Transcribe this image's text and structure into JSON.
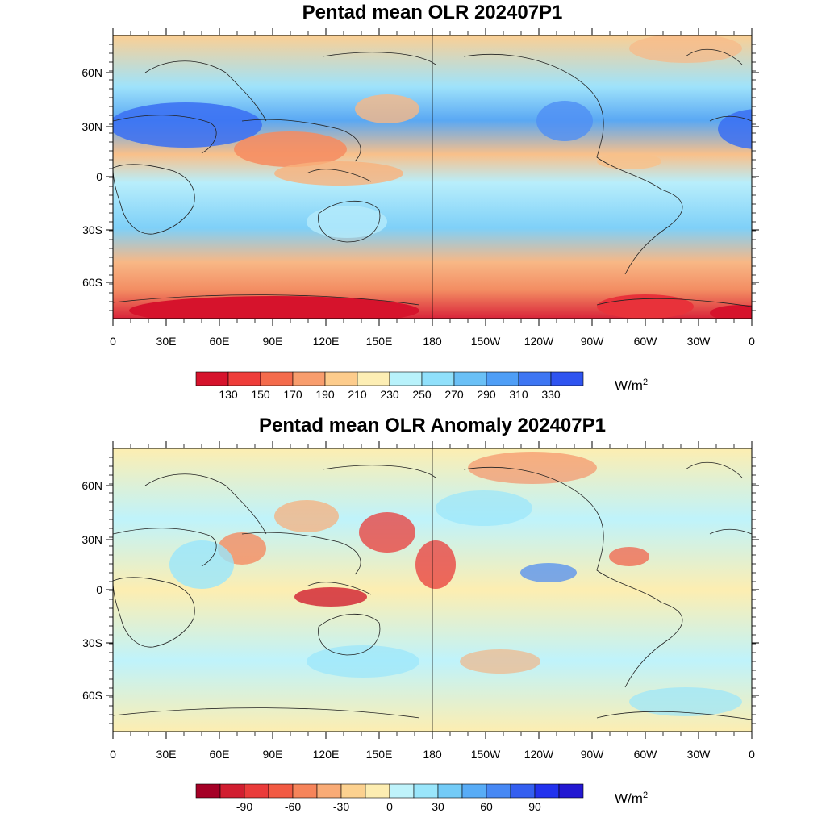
{
  "maps": [
    {
      "id": "olr",
      "title": "Pentad mean OLR 202407P1",
      "lat_ticks": [
        "60N",
        "30N",
        "0",
        "30S",
        "60S"
      ],
      "lon_ticks": [
        "0",
        "30E",
        "60E",
        "90E",
        "120E",
        "150E",
        "180",
        "150W",
        "120W",
        "90W",
        "60W",
        "30W",
        "0"
      ],
      "colorbar": {
        "colors": [
          "#d6132c",
          "#ef3d3a",
          "#f46b4c",
          "#f89d6d",
          "#fdcc8c",
          "#fdeeb4",
          "#b8f2fb",
          "#90e0fb",
          "#6ac0f6",
          "#4f9ef6",
          "#3e76f3",
          "#2f54f0"
        ],
        "labels": [
          "130",
          "150",
          "170",
          "190",
          "210",
          "230",
          "250",
          "270",
          "290",
          "310",
          "330"
        ],
        "unit": "W/m",
        "unit_sup": "2"
      }
    },
    {
      "id": "anomaly",
      "title": "Pentad mean OLR Anomaly 202407P1",
      "lat_ticks": [
        "60N",
        "30N",
        "0",
        "30S",
        "60S"
      ],
      "lon_ticks": [
        "0",
        "30E",
        "60E",
        "90E",
        "120E",
        "150E",
        "180",
        "150W",
        "120W",
        "90W",
        "60W",
        "30W",
        "0"
      ],
      "colorbar": {
        "colors": [
          "#a50026",
          "#d11e30",
          "#ea3b3a",
          "#f25a43",
          "#f6845a",
          "#f9ab76",
          "#fcd18f",
          "#fdedb1",
          "#bff3fb",
          "#9ae6fb",
          "#73cbf7",
          "#58acf6",
          "#4788f4",
          "#345ff0",
          "#2232ee",
          "#2318d2"
        ],
        "labels": [
          "-90",
          "-60",
          "-30",
          "0",
          "30",
          "60",
          "90"
        ],
        "unit": "W/m",
        "unit_sup": "2"
      }
    }
  ]
}
